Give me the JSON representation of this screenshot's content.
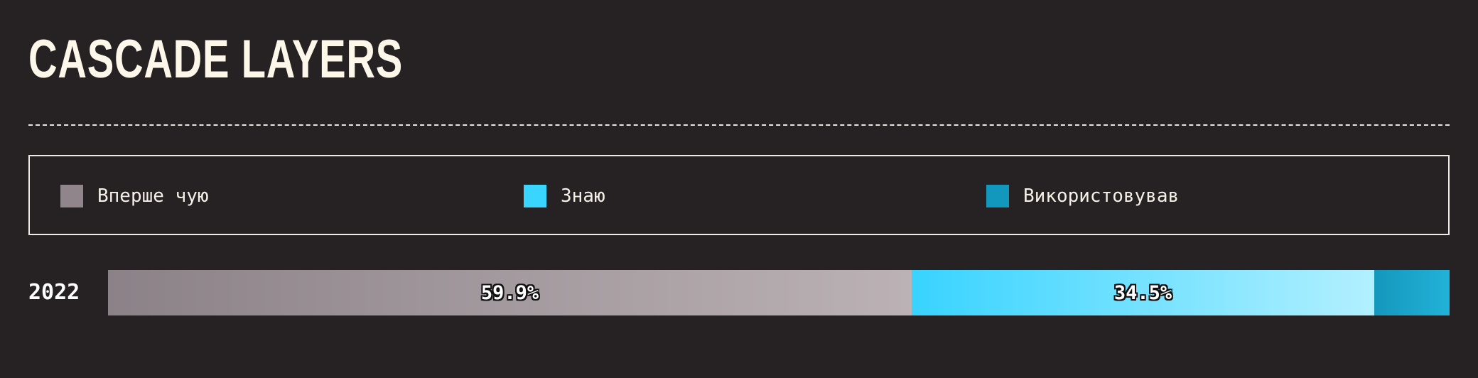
{
  "title": "CASCADE LAYERS",
  "legend": [
    {
      "label": "Вперше чую",
      "color": "#8f858b"
    },
    {
      "label": "Знаю",
      "color": "#3ad5ff"
    },
    {
      "label": "Використовував",
      "color": "#1398bd"
    }
  ],
  "chart_data": {
    "type": "bar",
    "orientation": "horizontal",
    "stacked": true,
    "categories": [
      "2022"
    ],
    "series": [
      {
        "name": "Вперше чую",
        "values": [
          59.9
        ],
        "value_label": "59.9%",
        "color_start": "#8b8288",
        "color_end": "#bbb2b5"
      },
      {
        "name": "Знаю",
        "values": [
          34.5
        ],
        "value_label": "34.5%",
        "color_start": "#38d3ff",
        "color_end": "#b2f0ff"
      },
      {
        "name": "Використовував",
        "values": [
          5.6
        ],
        "value_label": "",
        "color_start": "#1597bd",
        "color_end": "#22b2d8"
      }
    ],
    "unit": "%",
    "total": 100
  }
}
